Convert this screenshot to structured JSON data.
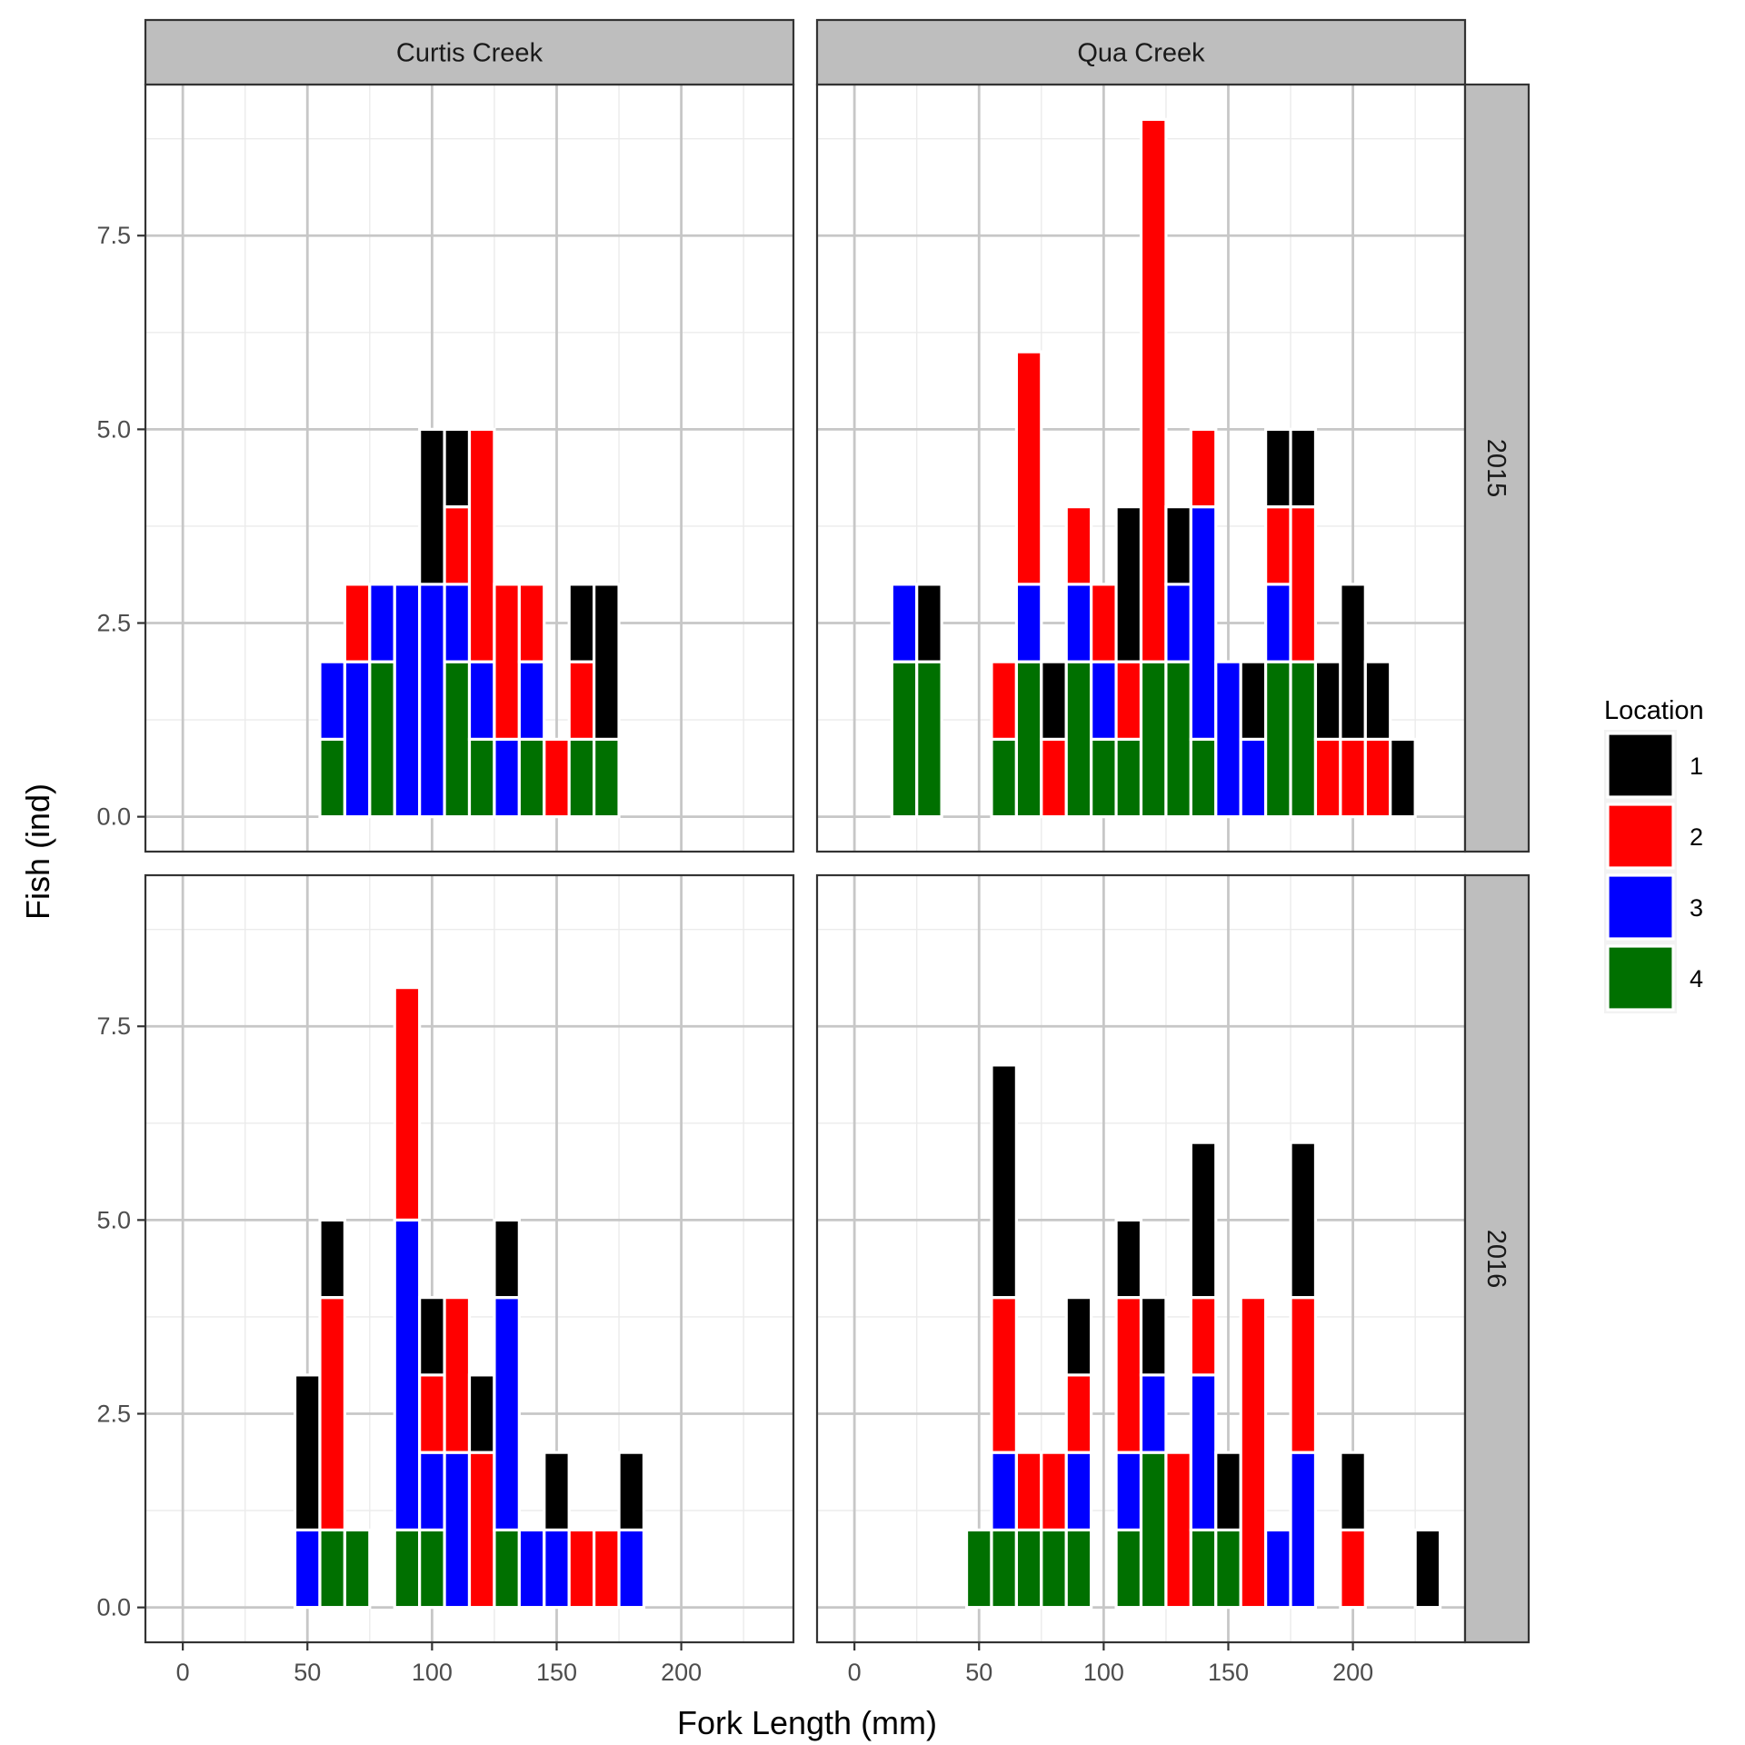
{
  "chart_data": {
    "type": "bar",
    "stacked": true,
    "xlabel": "Fork Length (mm)",
    "ylabel": "Fish (ind)",
    "xlim": [
      -15,
      245
    ],
    "ylim": [
      -0.45,
      9.45
    ],
    "x_ticks": [
      "0",
      "50",
      "100",
      "150",
      "200"
    ],
    "y_ticks": [
      "0.0",
      "2.5",
      "5.0",
      "7.5"
    ],
    "bin_width": 10,
    "legend": {
      "title": "Location",
      "position": "right",
      "entries": [
        {
          "label": "1",
          "color": "#000000"
        },
        {
          "label": "2",
          "color": "#ff0000"
        },
        {
          "label": "3",
          "color": "#0000ff"
        },
        {
          "label": "4",
          "color": "#007000"
        }
      ]
    },
    "stack_order": [
      "4",
      "3",
      "2",
      "1"
    ],
    "facets": [
      {
        "column": "Curtis Creek",
        "row": "2015",
        "bins": [
          {
            "x": 60,
            "counts": {
              "1": 0,
              "2": 0,
              "3": 1,
              "4": 1
            }
          },
          {
            "x": 70,
            "counts": {
              "1": 0,
              "2": 1,
              "3": 2,
              "4": 0
            }
          },
          {
            "x": 80,
            "counts": {
              "1": 0,
              "2": 0,
              "3": 1,
              "4": 2
            }
          },
          {
            "x": 90,
            "counts": {
              "1": 0,
              "2": 0,
              "3": 3,
              "4": 0
            }
          },
          {
            "x": 100,
            "counts": {
              "1": 2,
              "2": 0,
              "3": 3,
              "4": 0
            }
          },
          {
            "x": 110,
            "counts": {
              "1": 1,
              "2": 1,
              "3": 1,
              "4": 2
            }
          },
          {
            "x": 120,
            "counts": {
              "1": 0,
              "2": 3,
              "3": 1,
              "4": 1
            }
          },
          {
            "x": 130,
            "counts": {
              "1": 0,
              "2": 2,
              "3": 1,
              "4": 0
            }
          },
          {
            "x": 140,
            "counts": {
              "1": 0,
              "2": 1,
              "3": 1,
              "4": 1
            }
          },
          {
            "x": 150,
            "counts": {
              "1": 0,
              "2": 1,
              "3": 0,
              "4": 0
            }
          },
          {
            "x": 160,
            "counts": {
              "1": 1,
              "2": 1,
              "3": 0,
              "4": 1
            }
          },
          {
            "x": 170,
            "counts": {
              "1": 2,
              "2": 0,
              "3": 0,
              "4": 1
            }
          }
        ]
      },
      {
        "column": "Qua Creek",
        "row": "2015",
        "bins": [
          {
            "x": 20,
            "counts": {
              "1": 0,
              "2": 0,
              "3": 1,
              "4": 2
            }
          },
          {
            "x": 30,
            "counts": {
              "1": 1,
              "2": 0,
              "3": 0,
              "4": 2
            }
          },
          {
            "x": 60,
            "counts": {
              "1": 0,
              "2": 1,
              "3": 0,
              "4": 1
            }
          },
          {
            "x": 70,
            "counts": {
              "1": 0,
              "2": 3,
              "3": 1,
              "4": 2
            }
          },
          {
            "x": 80,
            "counts": {
              "1": 1,
              "2": 1,
              "3": 0,
              "4": 0
            }
          },
          {
            "x": 90,
            "counts": {
              "1": 0,
              "2": 1,
              "3": 1,
              "4": 2
            }
          },
          {
            "x": 100,
            "counts": {
              "1": 0,
              "2": 1,
              "3": 1,
              "4": 1
            }
          },
          {
            "x": 110,
            "counts": {
              "1": 2,
              "2": 1,
              "3": 0,
              "4": 1
            }
          },
          {
            "x": 120,
            "counts": {
              "1": 0,
              "2": 7,
              "3": 0,
              "4": 2
            }
          },
          {
            "x": 130,
            "counts": {
              "1": 1,
              "2": 0,
              "3": 1,
              "4": 2
            }
          },
          {
            "x": 140,
            "counts": {
              "1": 0,
              "2": 1,
              "3": 3,
              "4": 1
            }
          },
          {
            "x": 150,
            "counts": {
              "1": 0,
              "2": 0,
              "3": 2,
              "4": 0
            }
          },
          {
            "x": 160,
            "counts": {
              "1": 1,
              "2": 0,
              "3": 1,
              "4": 0
            }
          },
          {
            "x": 170,
            "counts": {
              "1": 1,
              "2": 1,
              "3": 1,
              "4": 2
            }
          },
          {
            "x": 180,
            "counts": {
              "1": 1,
              "2": 2,
              "3": 0,
              "4": 2
            }
          },
          {
            "x": 190,
            "counts": {
              "1": 1,
              "2": 1,
              "3": 0,
              "4": 0
            }
          },
          {
            "x": 200,
            "counts": {
              "1": 2,
              "2": 1,
              "3": 0,
              "4": 0
            }
          },
          {
            "x": 210,
            "counts": {
              "1": 1,
              "2": 1,
              "3": 0,
              "4": 0
            }
          },
          {
            "x": 220,
            "counts": {
              "1": 1,
              "2": 0,
              "3": 0,
              "4": 0
            }
          }
        ]
      },
      {
        "column": "Curtis Creek",
        "row": "2016",
        "bins": [
          {
            "x": 50,
            "counts": {
              "1": 2,
              "2": 0,
              "3": 1,
              "4": 0
            }
          },
          {
            "x": 60,
            "counts": {
              "1": 1,
              "2": 3,
              "3": 0,
              "4": 1
            }
          },
          {
            "x": 70,
            "counts": {
              "1": 0,
              "2": 0,
              "3": 0,
              "4": 1
            }
          },
          {
            "x": 90,
            "counts": {
              "1": 0,
              "2": 3,
              "3": 4,
              "4": 1
            }
          },
          {
            "x": 100,
            "counts": {
              "1": 1,
              "2": 1,
              "3": 1,
              "4": 1
            }
          },
          {
            "x": 110,
            "counts": {
              "1": 0,
              "2": 2,
              "3": 2,
              "4": 0
            }
          },
          {
            "x": 120,
            "counts": {
              "1": 1,
              "2": 2,
              "3": 0,
              "4": 0
            }
          },
          {
            "x": 130,
            "counts": {
              "1": 1,
              "2": 0,
              "3": 3,
              "4": 1
            }
          },
          {
            "x": 140,
            "counts": {
              "1": 0,
              "2": 0,
              "3": 1,
              "4": 0
            }
          },
          {
            "x": 150,
            "counts": {
              "1": 1,
              "2": 0,
              "3": 1,
              "4": 0
            }
          },
          {
            "x": 160,
            "counts": {
              "1": 0,
              "2": 1,
              "3": 0,
              "4": 0
            }
          },
          {
            "x": 170,
            "counts": {
              "1": 0,
              "2": 1,
              "3": 0,
              "4": 0
            }
          },
          {
            "x": 180,
            "counts": {
              "1": 1,
              "2": 0,
              "3": 1,
              "4": 0
            }
          }
        ]
      },
      {
        "column": "Qua Creek",
        "row": "2016",
        "bins": [
          {
            "x": 50,
            "counts": {
              "1": 0,
              "2": 0,
              "3": 0,
              "4": 1
            }
          },
          {
            "x": 60,
            "counts": {
              "1": 3,
              "2": 2,
              "3": 1,
              "4": 1
            }
          },
          {
            "x": 70,
            "counts": {
              "1": 0,
              "2": 1,
              "3": 0,
              "4": 1
            }
          },
          {
            "x": 80,
            "counts": {
              "1": 0,
              "2": 1,
              "3": 0,
              "4": 1
            }
          },
          {
            "x": 90,
            "counts": {
              "1": 1,
              "2": 1,
              "3": 1,
              "4": 1
            }
          },
          {
            "x": 110,
            "counts": {
              "1": 1,
              "2": 2,
              "3": 1,
              "4": 1
            }
          },
          {
            "x": 120,
            "counts": {
              "1": 1,
              "2": 0,
              "3": 1,
              "4": 2
            }
          },
          {
            "x": 130,
            "counts": {
              "1": 0,
              "2": 2,
              "3": 0,
              "4": 0
            }
          },
          {
            "x": 140,
            "counts": {
              "1": 2,
              "2": 1,
              "3": 2,
              "4": 1
            }
          },
          {
            "x": 150,
            "counts": {
              "1": 1,
              "2": 0,
              "3": 0,
              "4": 1
            }
          },
          {
            "x": 160,
            "counts": {
              "1": 0,
              "2": 4,
              "3": 0,
              "4": 0
            }
          },
          {
            "x": 170,
            "counts": {
              "1": 0,
              "2": 0,
              "3": 1,
              "4": 0
            }
          },
          {
            "x": 180,
            "counts": {
              "1": 2,
              "2": 2,
              "3": 2,
              "4": 0
            }
          },
          {
            "x": 200,
            "counts": {
              "1": 1,
              "2": 1,
              "3": 0,
              "4": 0
            }
          },
          {
            "x": 230,
            "counts": {
              "1": 1,
              "2": 0,
              "3": 0,
              "4": 0
            }
          }
        ]
      }
    ]
  }
}
